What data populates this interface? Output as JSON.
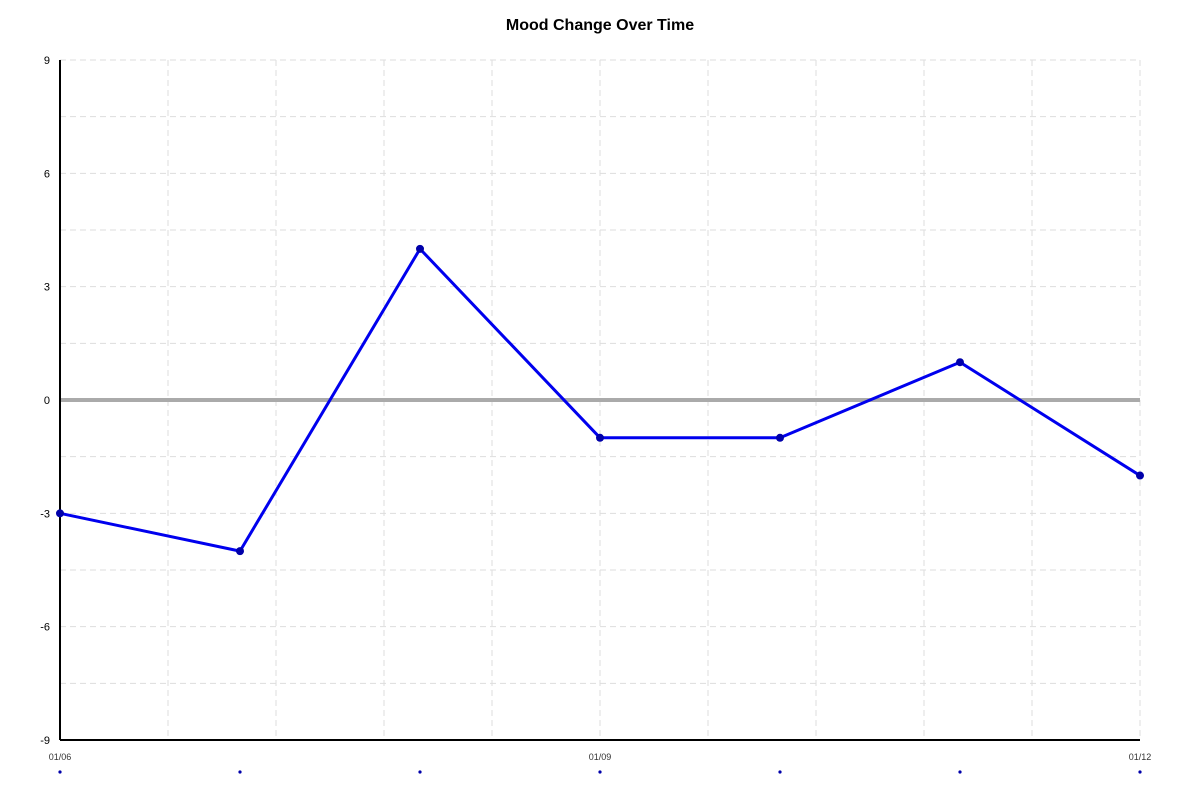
{
  "chart_data": {
    "type": "line",
    "title": "Mood Change Over Time",
    "xlabel": "",
    "ylabel": "",
    "x": [
      "2024-01-06 00:00",
      "2024-01-07 00:00",
      "2024-01-08 00:00",
      "2024-01-09 00:00",
      "2024-01-10 00:00",
      "2024-01-11 00:00",
      "2024-01-12 00:00"
    ],
    "x_tick_labels": [
      {
        "value": "2024-01-06 00:00",
        "label": "01/06"
      },
      {
        "value": "2024-01-09 00:00",
        "label": "01/09"
      },
      {
        "value": "2024-01-12 00:00",
        "label": "01/12"
      }
    ],
    "series": [
      {
        "values": [
          -3,
          -4,
          4,
          -1,
          -1,
          1,
          -2
        ],
        "color": "#0000ee"
      }
    ],
    "ylim": [
      -9,
      9
    ],
    "y_ticks": [
      9,
      6,
      3,
      0,
      -3,
      -6,
      -9
    ],
    "grid": true,
    "zero_line": true,
    "zero_line_color": "#aaaaaa",
    "grid_color": "#dddddd",
    "axis_color": "#000000",
    "marker_color": "#0000aa"
  }
}
